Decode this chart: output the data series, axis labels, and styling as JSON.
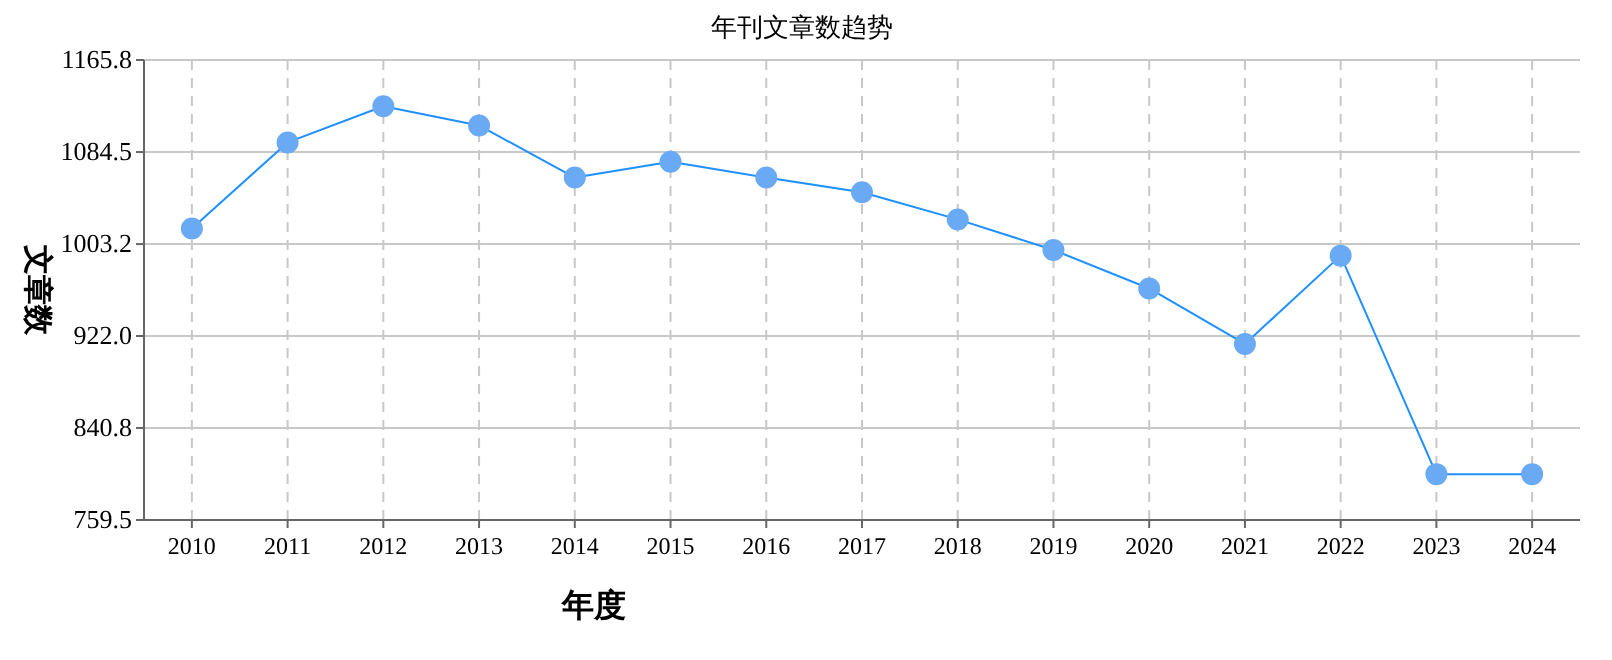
{
  "chart_data": {
    "type": "line",
    "title": "年刊文章数趋势",
    "xlabel": "年度",
    "ylabel": "文章数",
    "categories": [
      "2010",
      "2011",
      "2012",
      "2013",
      "2014",
      "2015",
      "2016",
      "2017",
      "2018",
      "2019",
      "2020",
      "2021",
      "2022",
      "2023",
      "2024"
    ],
    "series": [
      {
        "color": "#1e90ff",
        "values": [
          1017,
          1093,
          1125,
          1108,
          1062,
          1076,
          1062,
          1049,
          1025,
          998,
          964,
          915,
          993,
          800,
          800
        ]
      }
    ],
    "ylim": [
      759.5,
      1165.8
    ],
    "yticks": [
      759.5,
      840.8,
      {
        "value": 922,
        "label": "922.0"
      },
      1003.2,
      1084.5,
      1165.8
    ],
    "grid": true,
    "marker": "circle",
    "line_style": "solid"
  }
}
